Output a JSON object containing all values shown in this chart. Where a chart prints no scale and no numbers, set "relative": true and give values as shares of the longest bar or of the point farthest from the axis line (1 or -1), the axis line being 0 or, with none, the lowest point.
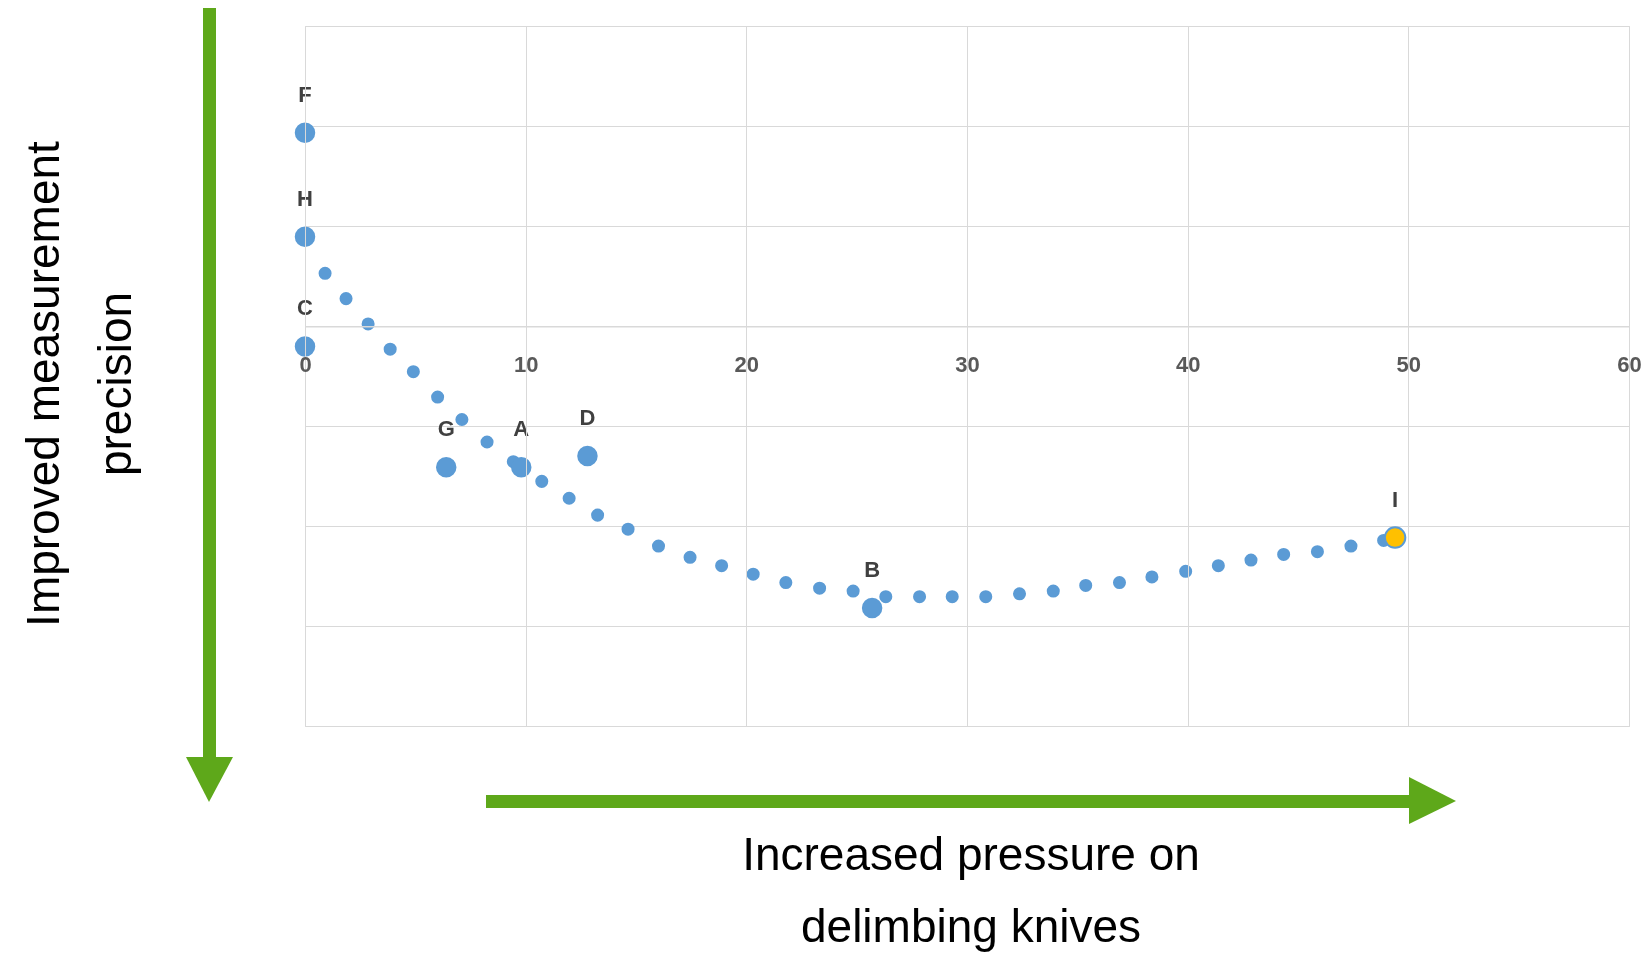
{
  "chart_data": {
    "type": "scatter",
    "relative": true,
    "xlabel": "Increased pressure on delimbing knives",
    "ylabel": "Improved measurement precision",
    "xlim": [
      0,
      60
    ],
    "xticks": [
      0,
      10,
      20,
      30,
      40,
      50,
      60
    ],
    "grid": true,
    "marker": "circle",
    "series": [
      {
        "color": "#5b9bd5",
        "x": [
          0.91,
          1.86,
          2.86,
          3.86,
          4.91,
          6.01,
          7.11,
          8.25,
          9.44,
          10.73,
          11.97,
          13.26,
          14.64,
          16.02,
          17.45,
          18.88,
          20.31,
          21.79,
          23.32,
          24.84,
          26.32,
          27.85,
          29.33,
          30.85,
          32.38,
          33.91,
          35.38,
          36.91,
          38.38,
          39.91,
          41.39,
          42.87,
          44.35,
          45.88,
          47.4,
          48.88
        ],
        "values": [
          0.19,
          0.1,
          0.01,
          -0.08,
          -0.16,
          -0.25,
          -0.33,
          -0.41,
          -0.48,
          -0.55,
          -0.61,
          -0.67,
          -0.72,
          -0.78,
          -0.82,
          -0.85,
          -0.88,
          -0.91,
          -0.93,
          -0.94,
          -0.96,
          -0.96,
          -0.96,
          -0.96,
          -0.95,
          -0.94,
          -0.92,
          -0.91,
          -0.89,
          -0.87,
          -0.85,
          -0.83,
          -0.81,
          -0.8,
          -0.78,
          -0.76
        ]
      },
      {
        "color": "#5b9bd5",
        "x": [
          0,
          0,
          0,
          6.4,
          9.8,
          12.8,
          25.7
        ],
        "values": [
          0.69,
          0.32,
          -0.07,
          -0.5,
          -0.5,
          -0.46,
          -1
        ]
      },
      {
        "color": "#ffc000",
        "x": [
          49.4
        ],
        "values": [
          -0.75
        ]
      }
    ],
    "annotations": [
      {
        "text": "F",
        "x": 0,
        "y": 0.69
      },
      {
        "text": "H",
        "x": 0,
        "y": 0.32
      },
      {
        "text": "C",
        "x": 0,
        "y": -0.07
      },
      {
        "text": "G",
        "x": 6.4,
        "y": -0.5
      },
      {
        "text": "A",
        "x": 9.8,
        "y": -0.5
      },
      {
        "text": "D",
        "x": 12.8,
        "y": -0.46
      },
      {
        "text": "B",
        "x": 25.7,
        "y": -1
      },
      {
        "text": "I",
        "x": 49.4,
        "y": -0.75
      }
    ]
  }
}
